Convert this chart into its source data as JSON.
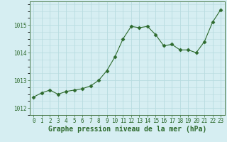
{
  "x": [
    0,
    1,
    2,
    3,
    4,
    5,
    6,
    7,
    8,
    9,
    10,
    11,
    12,
    13,
    14,
    15,
    16,
    17,
    18,
    19,
    20,
    21,
    22,
    23
  ],
  "y": [
    1012.4,
    1012.55,
    1012.65,
    1012.5,
    1012.6,
    1012.65,
    1012.7,
    1012.8,
    1013.0,
    1013.35,
    1013.85,
    1014.5,
    1014.95,
    1014.9,
    1014.95,
    1014.65,
    1014.25,
    1014.3,
    1014.1,
    1014.1,
    1014.0,
    1014.4,
    1015.1,
    1015.55
  ],
  "line_color": "#2d6a2d",
  "marker": "D",
  "marker_size": 2.5,
  "bg_color": "#d6eef2",
  "grid_color": "#b8dce0",
  "border_color": "#4a7a4a",
  "xlabel": "Graphe pression niveau de la mer (hPa)",
  "xlabel_fontsize": 7,
  "tick_color": "#2d6a2d",
  "tick_fontsize": 5.5,
  "ylim": [
    1011.75,
    1015.85
  ],
  "yticks": [
    1012,
    1013,
    1014,
    1015
  ],
  "xlim": [
    -0.5,
    23.5
  ],
  "xticks": [
    0,
    1,
    2,
    3,
    4,
    5,
    6,
    7,
    8,
    9,
    10,
    11,
    12,
    13,
    14,
    15,
    16,
    17,
    18,
    19,
    20,
    21,
    22,
    23
  ]
}
